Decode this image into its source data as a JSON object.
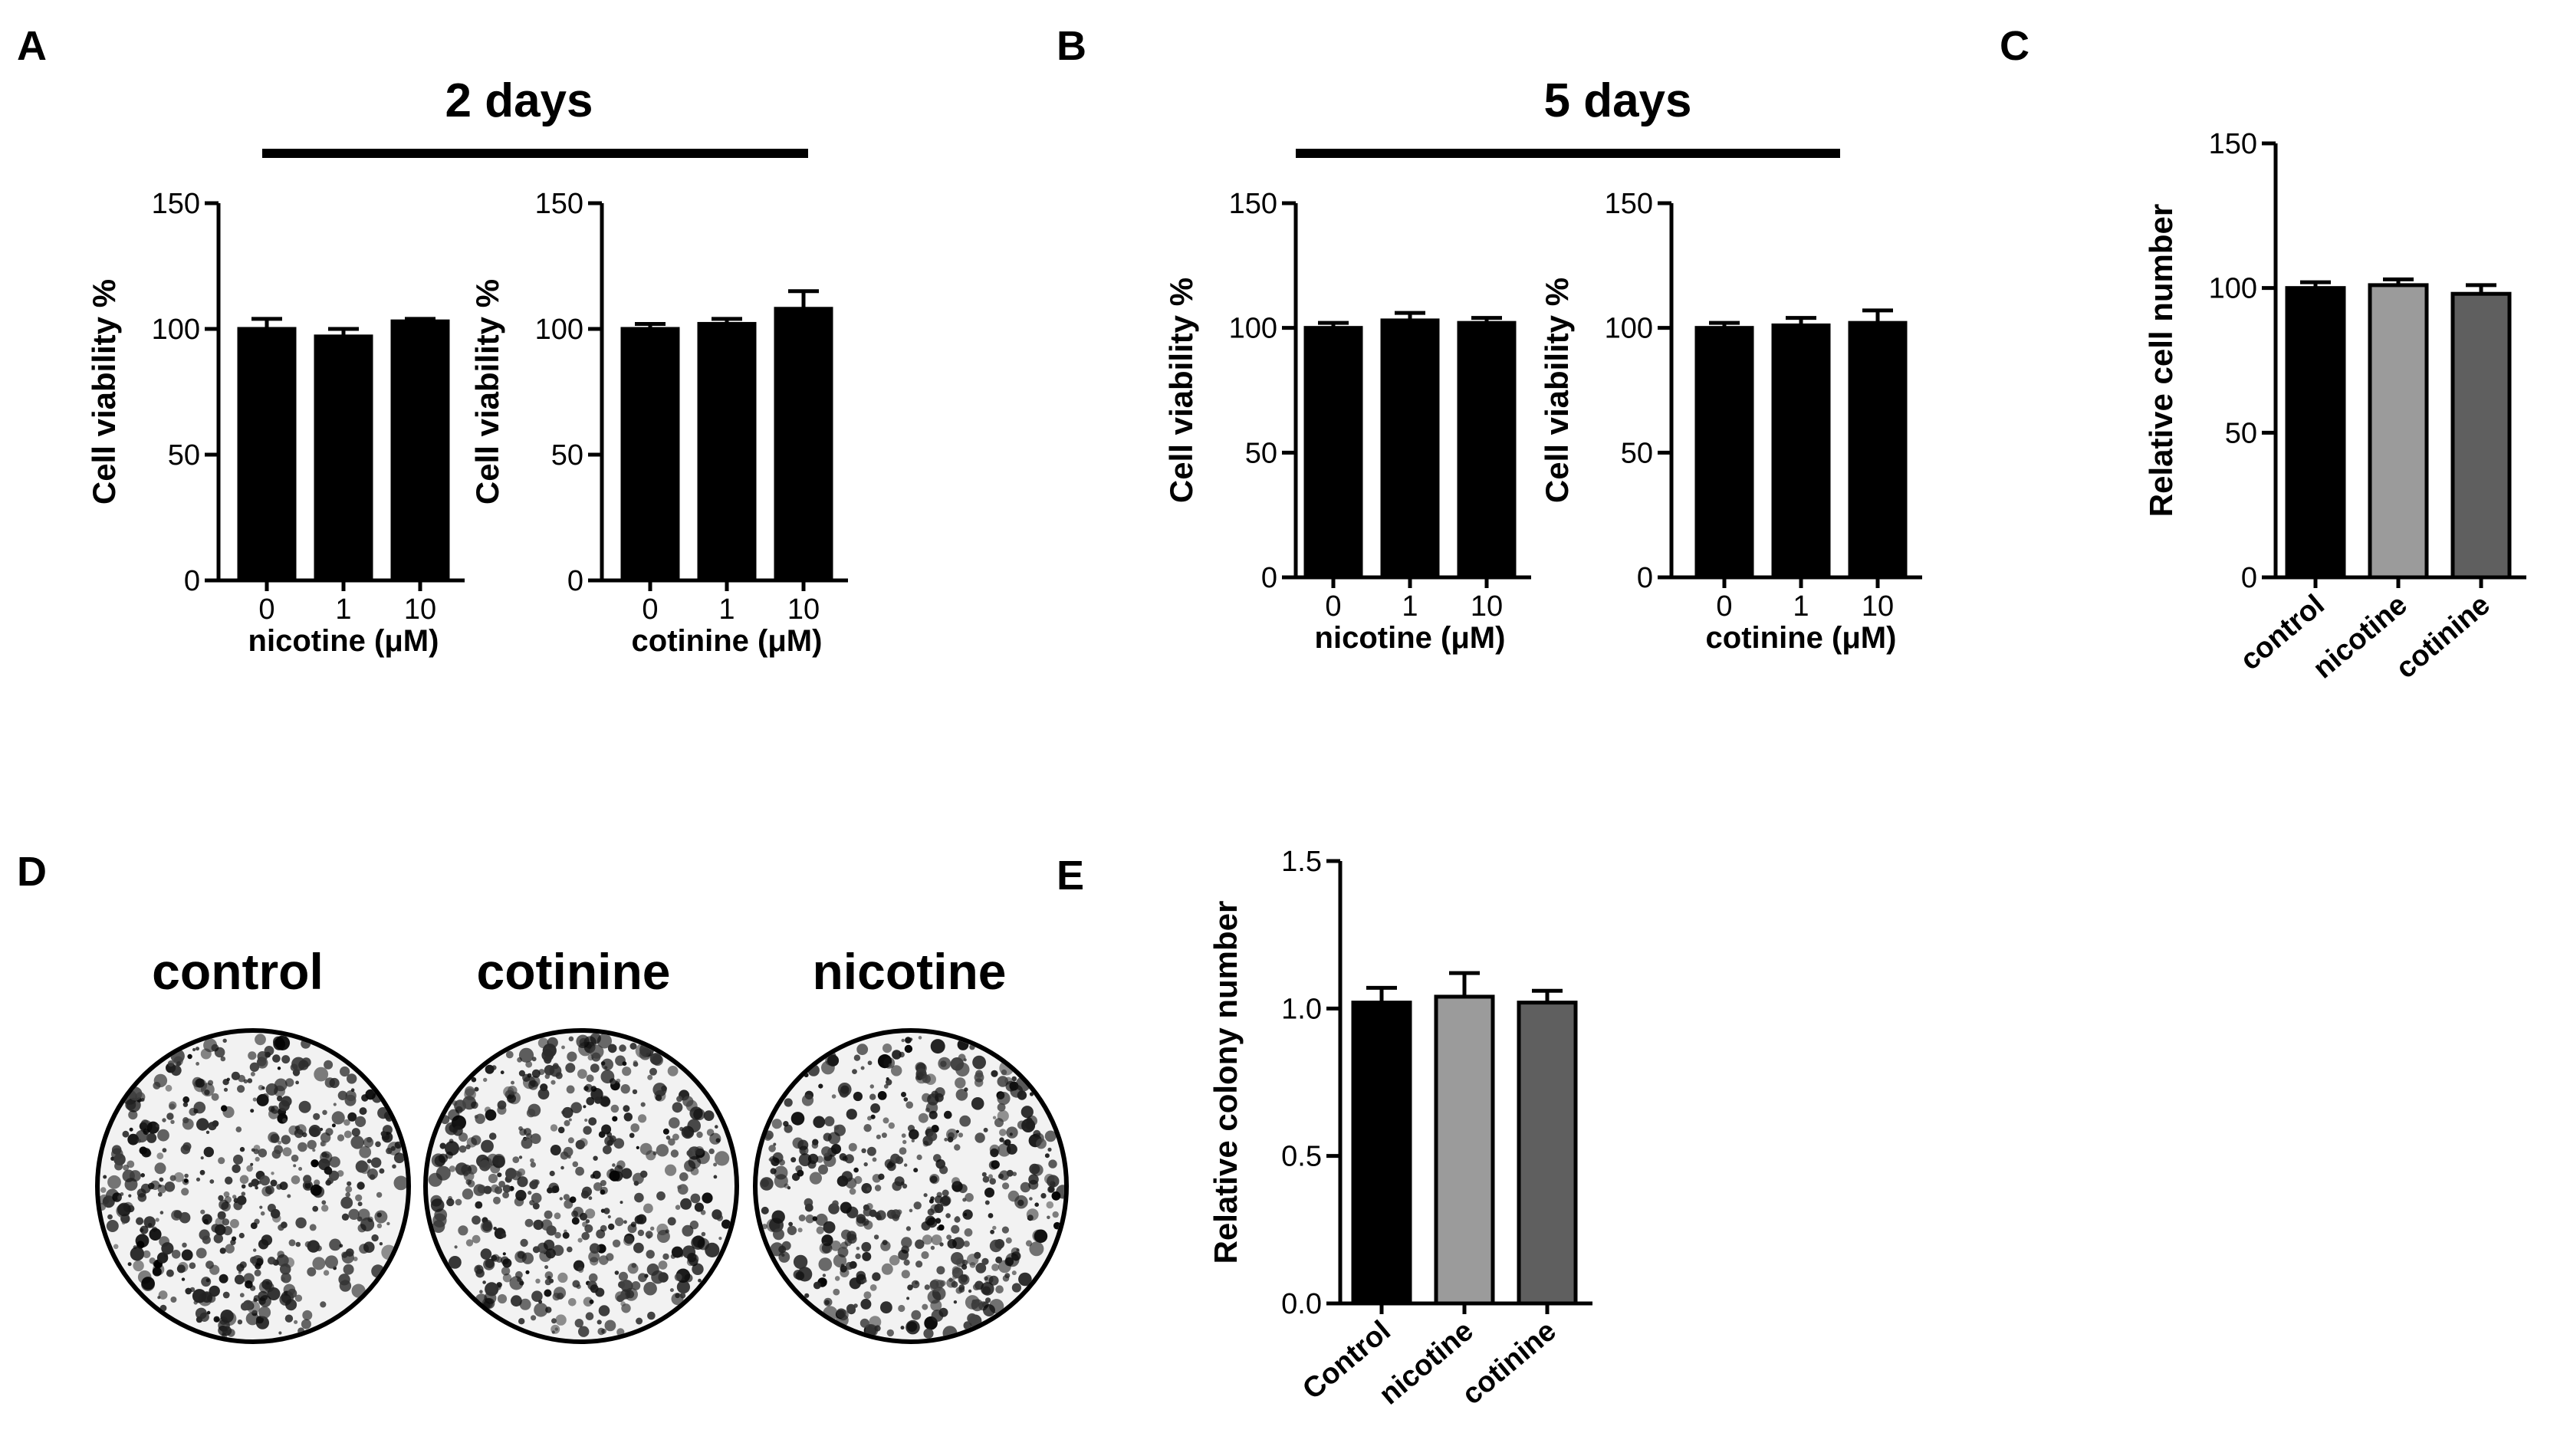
{
  "panel_letters": [
    "A",
    "B",
    "C",
    "D",
    "E"
  ],
  "group_headers": [
    "2 days",
    "5 days"
  ],
  "colors": {
    "bar_black": "#000000",
    "bar_lightgray": "#9b9b9b",
    "bar_darkgray": "#5f5f5f",
    "axis": "#000000"
  },
  "chart_data": [
    {
      "panel": "A",
      "group": "2 days",
      "type": "bar",
      "categories": [
        "0",
        "1",
        "10"
      ],
      "values": [
        100,
        97,
        103
      ],
      "errors": [
        4,
        3,
        1
      ],
      "ylabel": "Cell viability %",
      "xlabel": "nicotine (μM)",
      "ylim": [
        0,
        150
      ],
      "yticks": [
        "0",
        "50",
        "100",
        "150"
      ],
      "rotated_ticks": false,
      "bar_colors": [
        "#000000",
        "#000000",
        "#000000"
      ]
    },
    {
      "panel": "A",
      "group": "2 days",
      "type": "bar",
      "categories": [
        "0",
        "1",
        "10"
      ],
      "values": [
        100,
        102,
        108
      ],
      "errors": [
        2,
        2,
        7
      ],
      "ylabel": "Cell viability %",
      "xlabel": "cotinine (μM)",
      "ylim": [
        0,
        150
      ],
      "yticks": [
        "0",
        "50",
        "100",
        "150"
      ],
      "rotated_ticks": false,
      "bar_colors": [
        "#000000",
        "#000000",
        "#000000"
      ]
    },
    {
      "panel": "B",
      "group": "5 days",
      "type": "bar",
      "categories": [
        "0",
        "1",
        "10"
      ],
      "values": [
        100,
        103,
        102
      ],
      "errors": [
        2,
        3,
        2
      ],
      "ylabel": "Cell viability %",
      "xlabel": "nicotine (μM)",
      "ylim": [
        0,
        150
      ],
      "yticks": [
        "0",
        "50",
        "100",
        "150"
      ],
      "rotated_ticks": false,
      "bar_colors": [
        "#000000",
        "#000000",
        "#000000"
      ]
    },
    {
      "panel": "B",
      "group": "5 days",
      "type": "bar",
      "categories": [
        "0",
        "1",
        "10"
      ],
      "values": [
        100,
        101,
        102
      ],
      "errors": [
        2,
        3,
        5
      ],
      "ylabel": "Cell viability %",
      "xlabel": "cotinine (μM)",
      "ylim": [
        0,
        150
      ],
      "yticks": [
        "0",
        "50",
        "100",
        "150"
      ],
      "rotated_ticks": false,
      "bar_colors": [
        "#000000",
        "#000000",
        "#000000"
      ]
    },
    {
      "panel": "C",
      "type": "bar",
      "categories": [
        "control",
        "nicotine",
        "cotinine"
      ],
      "values": [
        100,
        101,
        98
      ],
      "errors": [
        2,
        2,
        3
      ],
      "ylabel": "Relative cell number",
      "xlabel": "",
      "ylim": [
        0,
        150
      ],
      "yticks": [
        "0",
        "50",
        "100",
        "150"
      ],
      "rotated_ticks": true,
      "bar_colors": [
        "#000000",
        "#9b9b9b",
        "#5f5f5f"
      ]
    },
    {
      "panel": "E",
      "type": "bar",
      "categories": [
        "Control",
        "nicotine",
        "cotinine"
      ],
      "values": [
        1.02,
        1.04,
        1.02
      ],
      "errors": [
        0.05,
        0.08,
        0.04
      ],
      "ylabel": "Relative colony number",
      "xlabel": "",
      "ylim": [
        0,
        1.5
      ],
      "yticks": [
        "0.0",
        "0.5",
        "1.0",
        "1.5"
      ],
      "rotated_ticks": true,
      "bar_colors": [
        "#000000",
        "#9b9b9b",
        "#5f5f5f"
      ]
    }
  ],
  "colony_plates": [
    {
      "label": "control",
      "seed": 11
    },
    {
      "label": "cotinine",
      "seed": 29
    },
    {
      "label": "nicotine",
      "seed": 47
    }
  ]
}
